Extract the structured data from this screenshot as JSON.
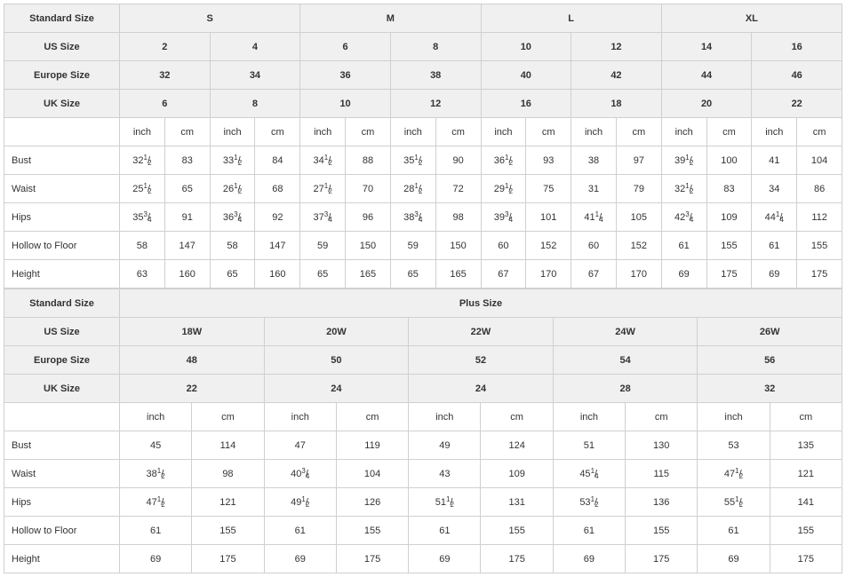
{
  "labels": {
    "standard_size": "Standard Size",
    "us_size": "US Size",
    "europe_size": "Europe Size",
    "uk_size": "UK Size",
    "inch": "inch",
    "cm": "cm",
    "plus_size": "Plus Size",
    "bust": "Bust",
    "waist": "Waist",
    "hips": "Hips",
    "hollow": "Hollow to Floor",
    "height": "Height"
  },
  "top": {
    "std": [
      "S",
      "M",
      "L",
      "XL"
    ],
    "us": [
      "2",
      "4",
      "6",
      "8",
      "10",
      "12",
      "14",
      "16"
    ],
    "eu": [
      "32",
      "34",
      "36",
      "38",
      "40",
      "42",
      "44",
      "46"
    ],
    "uk": [
      "6",
      "8",
      "10",
      "12",
      "16",
      "18",
      "20",
      "22"
    ],
    "rows": [
      {
        "name": "Bust",
        "cells": [
          {
            "in": "32",
            "num": "1",
            "den": "2",
            "cm": "83"
          },
          {
            "in": "33",
            "num": "1",
            "den": "2",
            "cm": "84"
          },
          {
            "in": "34",
            "num": "1",
            "den": "2",
            "cm": "88"
          },
          {
            "in": "35",
            "num": "1",
            "den": "2",
            "cm": "90"
          },
          {
            "in": "36",
            "num": "1",
            "den": "2",
            "cm": "93"
          },
          {
            "in": "38",
            "num": "",
            "den": "",
            "cm": "97"
          },
          {
            "in": "39",
            "num": "1",
            "den": "2",
            "cm": "100"
          },
          {
            "in": "41",
            "num": "",
            "den": "",
            "cm": "104"
          }
        ]
      },
      {
        "name": "Waist",
        "cells": [
          {
            "in": "25",
            "num": "1",
            "den": "2",
            "cm": "65"
          },
          {
            "in": "26",
            "num": "1",
            "den": "2",
            "cm": "68"
          },
          {
            "in": "27",
            "num": "1",
            "den": "2",
            "cm": "70"
          },
          {
            "in": "28",
            "num": "1",
            "den": "2",
            "cm": "72"
          },
          {
            "in": "29",
            "num": "1",
            "den": "2",
            "cm": "75"
          },
          {
            "in": "31",
            "num": "",
            "den": "",
            "cm": "79"
          },
          {
            "in": "32",
            "num": "1",
            "den": "2",
            "cm": "83"
          },
          {
            "in": "34",
            "num": "",
            "den": "",
            "cm": "86"
          }
        ]
      },
      {
        "name": "Hips",
        "cells": [
          {
            "in": "35",
            "num": "3",
            "den": "4",
            "cm": "91"
          },
          {
            "in": "36",
            "num": "3",
            "den": "4",
            "cm": "92"
          },
          {
            "in": "37",
            "num": "3",
            "den": "4",
            "cm": "96"
          },
          {
            "in": "38",
            "num": "3",
            "den": "4",
            "cm": "98"
          },
          {
            "in": "39",
            "num": "3",
            "den": "4",
            "cm": "101"
          },
          {
            "in": "41",
            "num": "1",
            "den": "4",
            "cm": "105"
          },
          {
            "in": "42",
            "num": "3",
            "den": "4",
            "cm": "109"
          },
          {
            "in": "44",
            "num": "1",
            "den": "4",
            "cm": "112"
          }
        ]
      },
      {
        "name": "Hollow to Floor",
        "cells": [
          {
            "in": "58",
            "num": "",
            "den": "",
            "cm": "147"
          },
          {
            "in": "58",
            "num": "",
            "den": "",
            "cm": "147"
          },
          {
            "in": "59",
            "num": "",
            "den": "",
            "cm": "150"
          },
          {
            "in": "59",
            "num": "",
            "den": "",
            "cm": "150"
          },
          {
            "in": "60",
            "num": "",
            "den": "",
            "cm": "152"
          },
          {
            "in": "60",
            "num": "",
            "den": "",
            "cm": "152"
          },
          {
            "in": "61",
            "num": "",
            "den": "",
            "cm": "155"
          },
          {
            "in": "61",
            "num": "",
            "den": "",
            "cm": "155"
          }
        ]
      },
      {
        "name": "Height",
        "cells": [
          {
            "in": "63",
            "num": "",
            "den": "",
            "cm": "160"
          },
          {
            "in": "65",
            "num": "",
            "den": "",
            "cm": "160"
          },
          {
            "in": "65",
            "num": "",
            "den": "",
            "cm": "165"
          },
          {
            "in": "65",
            "num": "",
            "den": "",
            "cm": "165"
          },
          {
            "in": "67",
            "num": "",
            "den": "",
            "cm": "170"
          },
          {
            "in": "67",
            "num": "",
            "den": "",
            "cm": "170"
          },
          {
            "in": "69",
            "num": "",
            "den": "",
            "cm": "175"
          },
          {
            "in": "69",
            "num": "",
            "den": "",
            "cm": "175"
          }
        ]
      }
    ]
  },
  "bottom": {
    "us": [
      "18W",
      "20W",
      "22W",
      "24W",
      "26W"
    ],
    "eu": [
      "48",
      "50",
      "52",
      "54",
      "56"
    ],
    "uk": [
      "22",
      "24",
      "24",
      "28",
      "32"
    ],
    "rows": [
      {
        "name": "Bust",
        "cells": [
          {
            "in": "45",
            "num": "",
            "den": "",
            "cm": "114"
          },
          {
            "in": "47",
            "num": "",
            "den": "",
            "cm": "119"
          },
          {
            "in": "49",
            "num": "",
            "den": "",
            "cm": "124"
          },
          {
            "in": "51",
            "num": "",
            "den": "",
            "cm": "130"
          },
          {
            "in": "53",
            "num": "",
            "den": "",
            "cm": "135"
          }
        ]
      },
      {
        "name": "Waist",
        "cells": [
          {
            "in": "38",
            "num": "1",
            "den": "2",
            "cm": "98"
          },
          {
            "in": "40",
            "num": "3",
            "den": "4",
            "cm": "104"
          },
          {
            "in": "43",
            "num": "",
            "den": "",
            "cm": "109"
          },
          {
            "in": "45",
            "num": "1",
            "den": "4",
            "cm": "115"
          },
          {
            "in": "47",
            "num": "1",
            "den": "2",
            "cm": "121"
          }
        ]
      },
      {
        "name": "Hips",
        "cells": [
          {
            "in": "47",
            "num": "1",
            "den": "2",
            "cm": "121"
          },
          {
            "in": "49",
            "num": "1",
            "den": "2",
            "cm": "126"
          },
          {
            "in": "51",
            "num": "1",
            "den": "2",
            "cm": "131"
          },
          {
            "in": "53",
            "num": "1",
            "den": "2",
            "cm": "136"
          },
          {
            "in": "55",
            "num": "1",
            "den": "2",
            "cm": "141"
          }
        ]
      },
      {
        "name": "Hollow to Floor",
        "cells": [
          {
            "in": "61",
            "num": "",
            "den": "",
            "cm": "155"
          },
          {
            "in": "61",
            "num": "",
            "den": "",
            "cm": "155"
          },
          {
            "in": "61",
            "num": "",
            "den": "",
            "cm": "155"
          },
          {
            "in": "61",
            "num": "",
            "den": "",
            "cm": "155"
          },
          {
            "in": "61",
            "num": "",
            "den": "",
            "cm": "155"
          }
        ]
      },
      {
        "name": "Height",
        "cells": [
          {
            "in": "69",
            "num": "",
            "den": "",
            "cm": "175"
          },
          {
            "in": "69",
            "num": "",
            "den": "",
            "cm": "175"
          },
          {
            "in": "69",
            "num": "",
            "den": "",
            "cm": "175"
          },
          {
            "in": "69",
            "num": "",
            "den": "",
            "cm": "175"
          },
          {
            "in": "69",
            "num": "",
            "den": "",
            "cm": "175"
          }
        ]
      }
    ]
  },
  "style": {
    "border_color": "#d0d0d0",
    "header_bg": "#f0f0f0",
    "text_color": "#333333",
    "font_size": 11
  }
}
